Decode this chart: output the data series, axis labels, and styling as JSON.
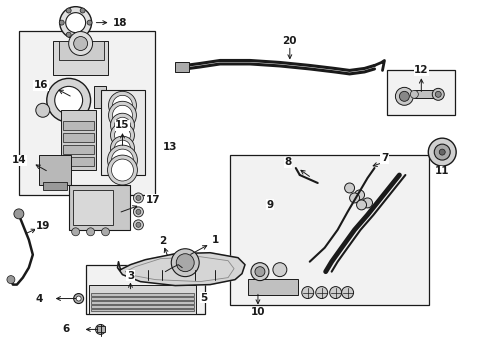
{
  "bg_color": "#ffffff",
  "line_color": "#1a1a1a",
  "box_fill": "#f2f2f2",
  "fig_width": 4.89,
  "fig_height": 3.6,
  "dpi": 100
}
